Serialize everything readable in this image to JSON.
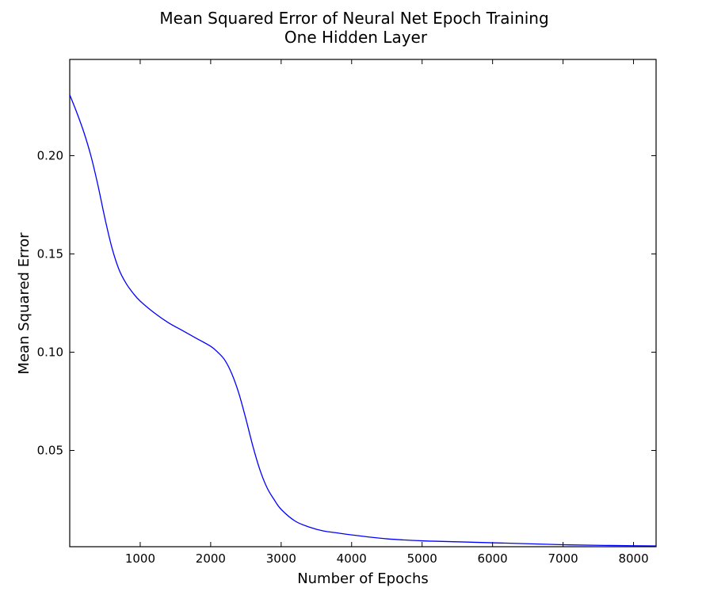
{
  "chart_data": {
    "type": "line",
    "title": "Mean Squared Error of Neural Net Epoch Training",
    "subtitle": "One Hidden Layer",
    "xlabel": "Number of Epochs",
    "ylabel": "Mean Squared Error",
    "xlim": [
      0,
      8320
    ],
    "ylim": [
      0.001,
      0.249
    ],
    "xticks": [
      1000,
      2000,
      3000,
      4000,
      5000,
      6000,
      7000,
      8000
    ],
    "xtick_labels": [
      "1000",
      "2000",
      "3000",
      "4000",
      "5000",
      "6000",
      "7000",
      "8000"
    ],
    "yticks": [
      0.05,
      0.1,
      0.15,
      0.2
    ],
    "ytick_labels": [
      "0.05",
      "0.10",
      "0.15",
      "0.20"
    ],
    "grid": false,
    "legend": "none",
    "series": [
      {
        "color": "#0000ff",
        "x": [
          0,
          100,
          200,
          300,
          400,
          500,
          600,
          700,
          800,
          900,
          1000,
          1200,
          1400,
          1600,
          1800,
          2000,
          2100,
          2200,
          2300,
          2400,
          2500,
          2600,
          2700,
          2800,
          2900,
          3000,
          3200,
          3400,
          3600,
          3800,
          4000,
          4500,
          5000,
          5500,
          6000,
          6500,
          7000,
          7500,
          8000,
          8320
        ],
        "y": [
          0.231,
          0.222,
          0.212,
          0.2,
          0.185,
          0.168,
          0.153,
          0.142,
          0.135,
          0.13,
          0.126,
          0.12,
          0.115,
          0.111,
          0.107,
          0.103,
          0.1,
          0.096,
          0.089,
          0.079,
          0.066,
          0.052,
          0.04,
          0.031,
          0.025,
          0.02,
          0.014,
          0.011,
          0.009,
          0.008,
          0.007,
          0.005,
          0.004,
          0.0035,
          0.003,
          0.0025,
          0.002,
          0.0017,
          0.0015,
          0.0014
        ]
      }
    ]
  }
}
